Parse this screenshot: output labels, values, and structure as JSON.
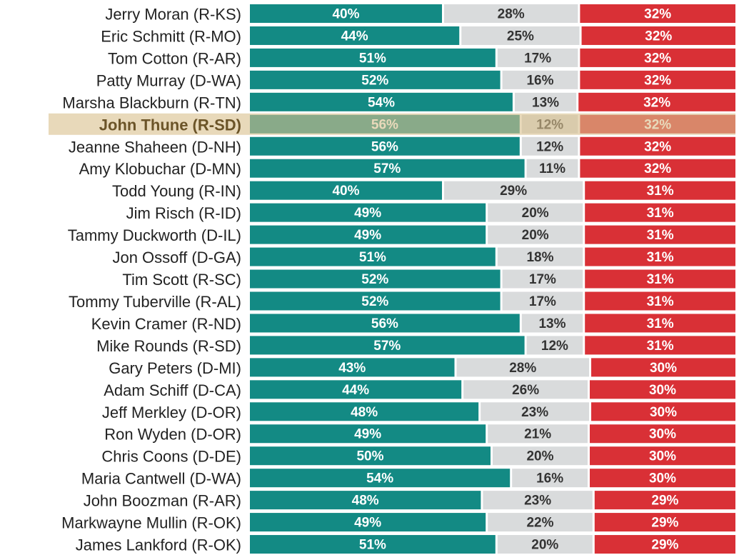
{
  "chart_data": {
    "type": "stacked_hbar",
    "categories": [
      "Jerry Moran (R-KS)",
      "Eric Schmitt (R-MO)",
      "Tom Cotton (R-AR)",
      "Patty Murray (D-WA)",
      "Marsha Blackburn (R-TN)",
      "John Thune (R-SD)",
      "Jeanne Shaheen (D-NH)",
      "Amy Klobuchar (D-MN)",
      "Todd Young (R-IN)",
      "Jim Risch (R-ID)",
      "Tammy Duckworth (D-IL)",
      "Jon Ossoff (D-GA)",
      "Tim Scott (R-SC)",
      "Tommy Tuberville (R-AL)",
      "Kevin Cramer (R-ND)",
      "Mike Rounds (R-SD)",
      "Gary Peters (D-MI)",
      "Adam Schiff (D-CA)",
      "Jeff Merkley (D-OR)",
      "Ron Wyden (D-OR)",
      "Chris Coons (D-DE)",
      "Maria Cantwell (D-WA)",
      "John Boozman (R-AR)",
      "Markwayne Mullin (R-OK)",
      "James Lankford (R-OK)"
    ],
    "highlight_index": 5,
    "series": [
      {
        "color": "#138a84",
        "label_color": "#ffffff",
        "values": [
          40,
          44,
          51,
          52,
          54,
          56,
          56,
          57,
          40,
          49,
          49,
          51,
          52,
          52,
          56,
          57,
          43,
          44,
          48,
          49,
          50,
          54,
          48,
          49,
          51
        ],
        "value_labels": [
          "40%",
          "44%",
          "51%",
          "52%",
          "54%",
          "56%",
          "56%",
          "57%",
          "40%",
          "49%",
          "49%",
          "51%",
          "52%",
          "52%",
          "56%",
          "57%",
          "43%",
          "44%",
          "48%",
          "49%",
          "50%",
          "54%",
          "48%",
          "49%",
          "51%"
        ]
      },
      {
        "color": "#d9dbdc",
        "label_color": "#333333",
        "values": [
          28,
          25,
          17,
          16,
          13,
          12,
          12,
          11,
          29,
          20,
          20,
          18,
          17,
          17,
          13,
          12,
          28,
          26,
          23,
          21,
          20,
          16,
          23,
          22,
          20
        ],
        "value_labels": [
          "28%",
          "25%",
          "17%",
          "16%",
          "13%",
          "12%",
          "12%",
          "11%",
          "29%",
          "20%",
          "20%",
          "18%",
          "17%",
          "17%",
          "13%",
          "12%",
          "28%",
          "26%",
          "23%",
          "21%",
          "20%",
          "16%",
          "23%",
          "22%",
          "20%"
        ]
      },
      {
        "color": "#d93036",
        "label_color": "#ffffff",
        "values": [
          32,
          32,
          32,
          32,
          32,
          32,
          32,
          32,
          31,
          31,
          31,
          31,
          31,
          31,
          31,
          31,
          30,
          30,
          30,
          30,
          30,
          30,
          29,
          29,
          29
        ],
        "value_labels": [
          "32%",
          "32%",
          "32%",
          "32%",
          "32%",
          "32%",
          "32%",
          "32%",
          "31%",
          "31%",
          "31%",
          "31%",
          "31%",
          "31%",
          "31%",
          "31%",
          "30%",
          "30%",
          "30%",
          "30%",
          "30%",
          "30%",
          "29%",
          "29%",
          "29%"
        ]
      }
    ]
  }
}
